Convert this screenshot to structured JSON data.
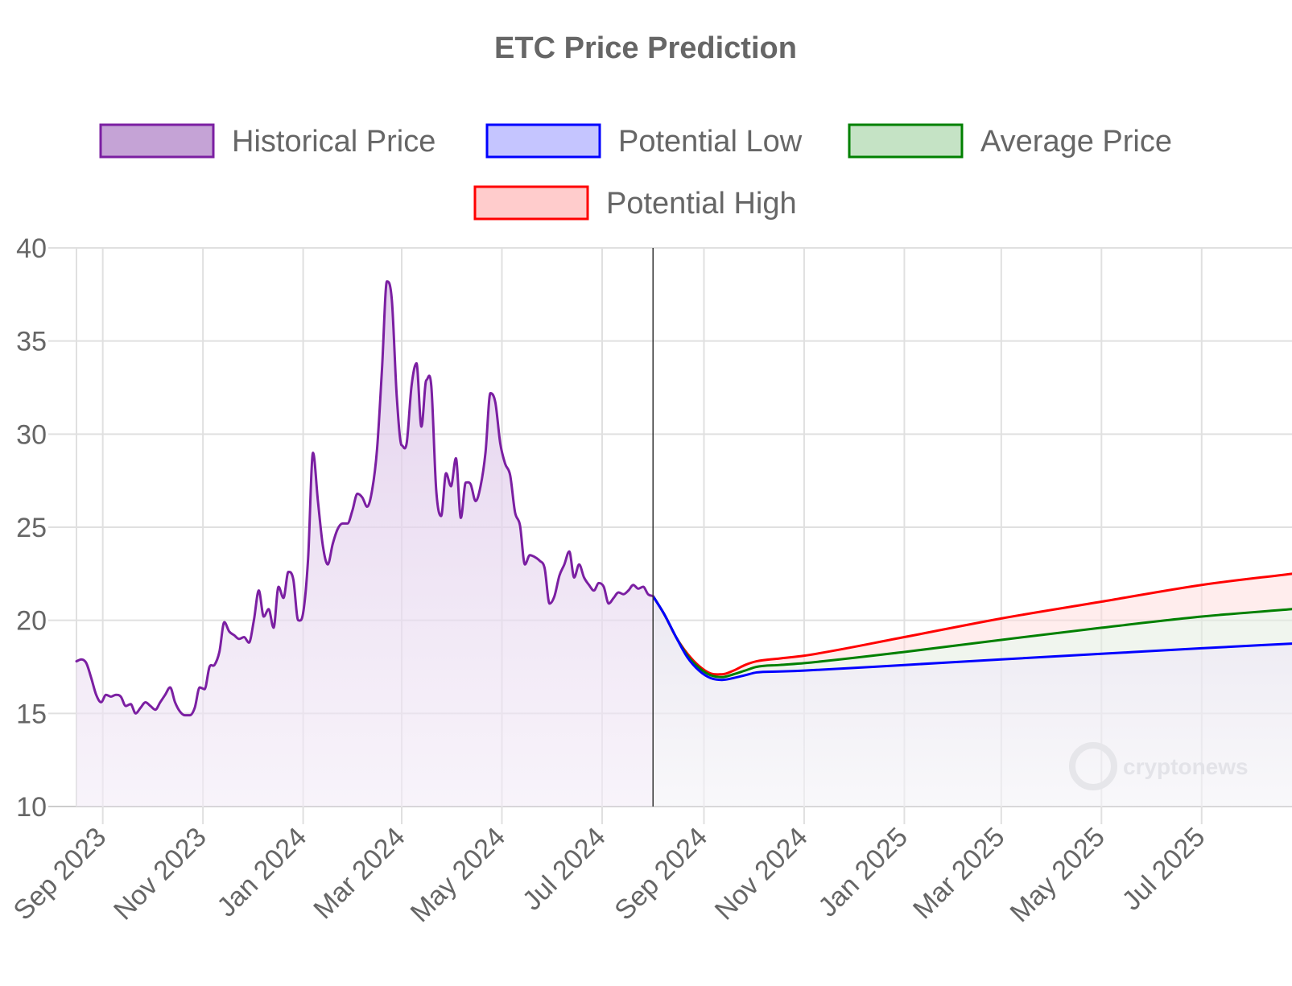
{
  "chart_data": {
    "type": "line",
    "title": "ETC Price Prediction",
    "xlabel": "",
    "ylabel": "",
    "ylim": [
      10,
      40
    ],
    "yticks": [
      10,
      15,
      20,
      25,
      30,
      35,
      40
    ],
    "xlim": [
      "2023-08-16",
      "2025-08-25"
    ],
    "xticks": [
      {
        "date": "2023-09-01",
        "label": "Sep 2023"
      },
      {
        "date": "2023-11-01",
        "label": "Nov 2023"
      },
      {
        "date": "2024-01-01",
        "label": "Jan 2024"
      },
      {
        "date": "2024-03-01",
        "label": "Mar 2024"
      },
      {
        "date": "2024-05-01",
        "label": "May 2024"
      },
      {
        "date": "2024-07-01",
        "label": "Jul 2024"
      },
      {
        "date": "2024-09-01",
        "label": "Sep 2024"
      },
      {
        "date": "2024-11-01",
        "label": "Nov 2024"
      },
      {
        "date": "2025-01-01",
        "label": "Jan 2025"
      },
      {
        "date": "2025-03-01",
        "label": "Mar 2025"
      },
      {
        "date": "2025-05-01",
        "label": "May 2025"
      },
      {
        "date": "2025-07-01",
        "label": "Jul 2025"
      }
    ],
    "grid": true,
    "legend_position": "top",
    "divider_date": "2024-08-01",
    "watermark": "cryptonews",
    "series": [
      {
        "name": "Historical Price",
        "color": "#7b1fa2",
        "fill": "#c5a3d6",
        "points": [
          [
            "2023-08-16",
            17.8
          ],
          [
            "2023-08-19",
            17.9
          ],
          [
            "2023-08-22",
            17.7
          ],
          [
            "2023-08-25",
            16.9
          ],
          [
            "2023-08-28",
            16.0
          ],
          [
            "2023-08-31",
            15.6
          ],
          [
            "2023-09-03",
            16.0
          ],
          [
            "2023-09-06",
            15.9
          ],
          [
            "2023-09-09",
            16.0
          ],
          [
            "2023-09-12",
            15.9
          ],
          [
            "2023-09-15",
            15.4
          ],
          [
            "2023-09-18",
            15.5
          ],
          [
            "2023-09-21",
            15.0
          ],
          [
            "2023-09-24",
            15.3
          ],
          [
            "2023-09-27",
            15.6
          ],
          [
            "2023-09-30",
            15.4
          ],
          [
            "2023-10-03",
            15.2
          ],
          [
            "2023-10-06",
            15.6
          ],
          [
            "2023-10-09",
            16.0
          ],
          [
            "2023-10-12",
            16.4
          ],
          [
            "2023-10-15",
            15.6
          ],
          [
            "2023-10-18",
            15.1
          ],
          [
            "2023-10-21",
            14.9
          ],
          [
            "2023-10-24",
            14.9
          ],
          [
            "2023-10-27",
            15.3
          ],
          [
            "2023-10-30",
            16.4
          ],
          [
            "2023-11-02",
            16.3
          ],
          [
            "2023-11-05",
            17.5
          ],
          [
            "2023-11-08",
            17.6
          ],
          [
            "2023-11-11",
            18.3
          ],
          [
            "2023-11-14",
            19.9
          ],
          [
            "2023-11-17",
            19.4
          ],
          [
            "2023-11-20",
            19.2
          ],
          [
            "2023-11-23",
            19.0
          ],
          [
            "2023-11-26",
            19.1
          ],
          [
            "2023-11-29",
            18.8
          ],
          [
            "2023-12-02",
            20.0
          ],
          [
            "2023-12-05",
            21.6
          ],
          [
            "2023-12-08",
            20.2
          ],
          [
            "2023-12-11",
            20.6
          ],
          [
            "2023-12-14",
            19.6
          ],
          [
            "2023-12-17",
            21.8
          ],
          [
            "2023-12-20",
            21.2
          ],
          [
            "2023-12-23",
            22.6
          ],
          [
            "2023-12-26",
            22.2
          ],
          [
            "2023-12-29",
            20.0
          ],
          [
            "2024-01-01",
            20.4
          ],
          [
            "2024-01-04",
            23.3
          ],
          [
            "2024-01-07",
            29.0
          ],
          [
            "2024-01-10",
            26.4
          ],
          [
            "2024-01-13",
            24.0
          ],
          [
            "2024-01-16",
            23.0
          ],
          [
            "2024-01-19",
            24.1
          ],
          [
            "2024-01-22",
            24.9
          ],
          [
            "2024-01-25",
            25.2
          ],
          [
            "2024-01-28",
            25.2
          ],
          [
            "2024-01-31",
            25.9
          ],
          [
            "2024-02-03",
            26.8
          ],
          [
            "2024-02-06",
            26.6
          ],
          [
            "2024-02-09",
            26.1
          ],
          [
            "2024-02-12",
            27.0
          ],
          [
            "2024-02-15",
            29.2
          ],
          [
            "2024-02-18",
            33.5
          ],
          [
            "2024-02-21",
            38.2
          ],
          [
            "2024-02-24",
            37.2
          ],
          [
            "2024-02-27",
            32.0
          ],
          [
            "2024-03-01",
            29.4
          ],
          [
            "2024-03-04",
            29.5
          ],
          [
            "2024-03-07",
            32.6
          ],
          [
            "2024-03-10",
            33.8
          ],
          [
            "2024-03-13",
            30.4
          ],
          [
            "2024-03-16",
            32.9
          ],
          [
            "2024-03-19",
            32.6
          ],
          [
            "2024-03-22",
            27.0
          ],
          [
            "2024-03-25",
            25.6
          ],
          [
            "2024-03-28",
            27.9
          ],
          [
            "2024-03-31",
            27.2
          ],
          [
            "2024-04-03",
            28.7
          ],
          [
            "2024-04-06",
            25.5
          ],
          [
            "2024-04-09",
            27.4
          ],
          [
            "2024-04-12",
            27.3
          ],
          [
            "2024-04-15",
            26.4
          ],
          [
            "2024-04-18",
            27.2
          ],
          [
            "2024-04-21",
            29.0
          ],
          [
            "2024-04-24",
            32.2
          ],
          [
            "2024-04-27",
            31.7
          ],
          [
            "2024-04-30",
            29.5
          ],
          [
            "2024-05-03",
            28.4
          ],
          [
            "2024-05-06",
            27.8
          ],
          [
            "2024-05-09",
            25.8
          ],
          [
            "2024-05-12",
            25.1
          ],
          [
            "2024-05-15",
            23.0
          ],
          [
            "2024-05-18",
            23.5
          ],
          [
            "2024-05-21",
            23.4
          ],
          [
            "2024-05-24",
            23.2
          ],
          [
            "2024-05-27",
            22.8
          ],
          [
            "2024-05-30",
            20.9
          ],
          [
            "2024-06-02",
            21.3
          ],
          [
            "2024-06-05",
            22.4
          ],
          [
            "2024-06-08",
            23.0
          ],
          [
            "2024-06-11",
            23.7
          ],
          [
            "2024-06-14",
            22.3
          ],
          [
            "2024-06-17",
            23.0
          ],
          [
            "2024-06-20",
            22.3
          ],
          [
            "2024-06-23",
            21.9
          ],
          [
            "2024-06-26",
            21.6
          ],
          [
            "2024-06-29",
            22.0
          ],
          [
            "2024-07-02",
            21.8
          ],
          [
            "2024-07-05",
            20.9
          ],
          [
            "2024-07-08",
            21.2
          ],
          [
            "2024-07-11",
            21.5
          ],
          [
            "2024-07-14",
            21.4
          ],
          [
            "2024-07-17",
            21.6
          ],
          [
            "2024-07-20",
            21.9
          ],
          [
            "2024-07-23",
            21.7
          ],
          [
            "2024-07-26",
            21.8
          ],
          [
            "2024-07-29",
            21.4
          ],
          [
            "2024-08-01",
            21.3
          ]
        ]
      },
      {
        "name": "Potential Low",
        "color": "#0000ff",
        "fill": "#c5c5ff",
        "points": [
          [
            "2024-08-01",
            21.3
          ],
          [
            "2024-08-08",
            20.3
          ],
          [
            "2024-08-15",
            19.1
          ],
          [
            "2024-08-22",
            18.0
          ],
          [
            "2024-08-29",
            17.3
          ],
          [
            "2024-09-05",
            16.9
          ],
          [
            "2024-09-12",
            16.8
          ],
          [
            "2024-09-19",
            16.9
          ],
          [
            "2024-09-26",
            17.05
          ],
          [
            "2024-10-03",
            17.2
          ],
          [
            "2024-10-17",
            17.25
          ],
          [
            "2024-11-01",
            17.3
          ],
          [
            "2025-01-01",
            17.6
          ],
          [
            "2025-03-01",
            17.9
          ],
          [
            "2025-05-01",
            18.2
          ],
          [
            "2025-07-01",
            18.5
          ],
          [
            "2025-08-25",
            18.75
          ]
        ]
      },
      {
        "name": "Average Price",
        "color": "#008000",
        "fill": "#c5e3c5",
        "points": [
          [
            "2024-08-01",
            21.3
          ],
          [
            "2024-08-08",
            20.3
          ],
          [
            "2024-08-15",
            19.1
          ],
          [
            "2024-08-22",
            18.1
          ],
          [
            "2024-08-29",
            17.45
          ],
          [
            "2024-09-05",
            17.05
          ],
          [
            "2024-09-12",
            16.95
          ],
          [
            "2024-09-19",
            17.1
          ],
          [
            "2024-09-26",
            17.3
          ],
          [
            "2024-10-03",
            17.5
          ],
          [
            "2024-10-17",
            17.6
          ],
          [
            "2024-11-01",
            17.7
          ],
          [
            "2025-01-01",
            18.3
          ],
          [
            "2025-03-01",
            18.95
          ],
          [
            "2025-05-01",
            19.6
          ],
          [
            "2025-07-01",
            20.2
          ],
          [
            "2025-08-25",
            20.6
          ]
        ]
      },
      {
        "name": "Potential High",
        "color": "#ff0000",
        "fill": "#ffcccc",
        "points": [
          [
            "2024-08-01",
            21.3
          ],
          [
            "2024-08-08",
            20.3
          ],
          [
            "2024-08-15",
            19.1
          ],
          [
            "2024-08-22",
            18.2
          ],
          [
            "2024-08-29",
            17.55
          ],
          [
            "2024-09-05",
            17.15
          ],
          [
            "2024-09-12",
            17.1
          ],
          [
            "2024-09-19",
            17.3
          ],
          [
            "2024-09-26",
            17.6
          ],
          [
            "2024-10-03",
            17.8
          ],
          [
            "2024-10-17",
            17.95
          ],
          [
            "2024-11-01",
            18.1
          ],
          [
            "2025-01-01",
            19.1
          ],
          [
            "2025-03-01",
            20.1
          ],
          [
            "2025-05-01",
            21.0
          ],
          [
            "2025-07-01",
            21.9
          ],
          [
            "2025-08-25",
            22.5
          ]
        ]
      }
    ]
  }
}
